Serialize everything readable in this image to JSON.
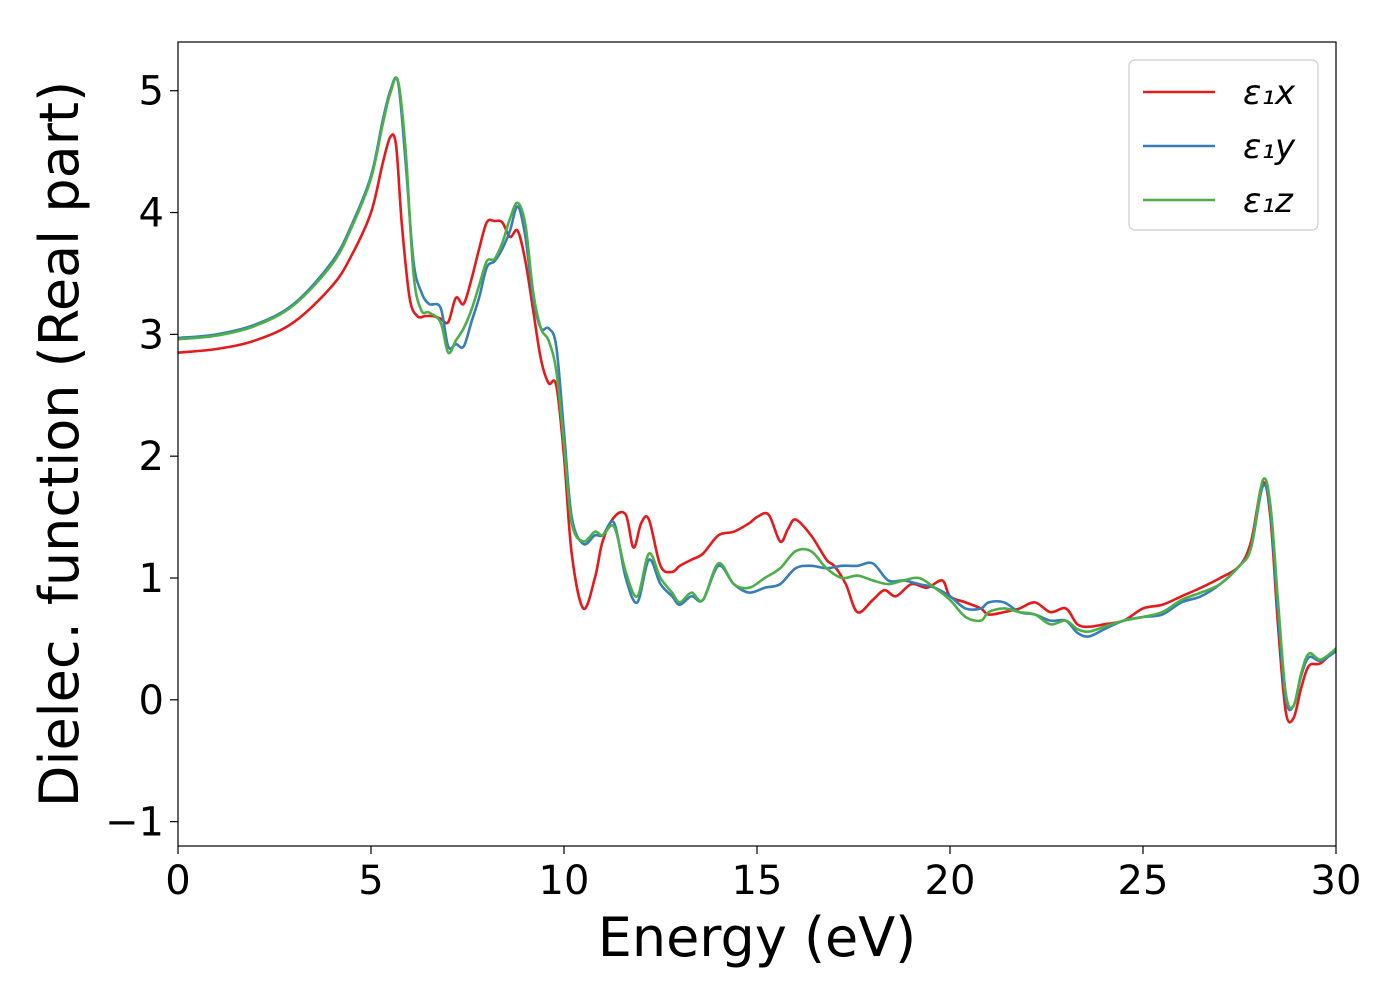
{
  "chart_data": {
    "type": "line",
    "title": "",
    "xlabel": "Energy (eV)",
    "ylabel": "Dielec. function (Real part)",
    "xlim": [
      0,
      30
    ],
    "ylim": [
      -1.2,
      5.4
    ],
    "xticks": [
      0,
      5,
      10,
      15,
      20,
      25,
      30
    ],
    "xtick_labels": [
      "0",
      "5",
      "10",
      "15",
      "20",
      "25",
      "30"
    ],
    "yticks": [
      -1,
      0,
      1,
      2,
      3,
      4,
      5
    ],
    "ytick_labels": [
      "−1",
      "0",
      "1",
      "2",
      "3",
      "4",
      "5"
    ],
    "grid": false,
    "legend_position": "top-right",
    "series": [
      {
        "name": "ε₁x",
        "color": "#e41a1c",
        "x": [
          0,
          1,
          2,
          3,
          4,
          4.5,
          5,
          5.3,
          5.5,
          5.65,
          5.8,
          6.0,
          6.2,
          6.4,
          6.6,
          6.8,
          7.0,
          7.2,
          7.4,
          7.6,
          7.8,
          8.0,
          8.2,
          8.4,
          8.6,
          8.8,
          9.0,
          9.2,
          9.4,
          9.6,
          9.8,
          10.0,
          10.2,
          10.5,
          10.8,
          11.0,
          11.3,
          11.6,
          11.8,
          12.0,
          12.2,
          12.5,
          12.8,
          13.0,
          13.3,
          13.6,
          14.0,
          14.4,
          14.8,
          15.0,
          15.3,
          15.6,
          15.8,
          16.0,
          16.4,
          16.8,
          17.0,
          17.3,
          17.6,
          18.0,
          18.3,
          18.6,
          19.0,
          19.4,
          19.8,
          20.0,
          20.4,
          20.8,
          21.0,
          21.4,
          21.8,
          22.2,
          22.6,
          23.0,
          23.3,
          23.6,
          24.0,
          24.5,
          25.0,
          25.5,
          26.0,
          26.5,
          27.0,
          27.5,
          27.8,
          28.1,
          28.3,
          28.5,
          28.7,
          28.9,
          29.1,
          29.3,
          29.6,
          30.0
        ],
        "y": [
          2.85,
          2.88,
          2.95,
          3.1,
          3.4,
          3.65,
          4.0,
          4.4,
          4.62,
          4.55,
          3.9,
          3.3,
          3.15,
          3.15,
          3.15,
          3.13,
          3.1,
          3.3,
          3.25,
          3.45,
          3.7,
          3.92,
          3.93,
          3.92,
          3.8,
          3.85,
          3.6,
          3.2,
          2.8,
          2.6,
          2.58,
          2.0,
          1.2,
          0.75,
          1.0,
          1.3,
          1.5,
          1.52,
          1.25,
          1.45,
          1.48,
          1.1,
          1.05,
          1.1,
          1.15,
          1.2,
          1.35,
          1.38,
          1.45,
          1.5,
          1.52,
          1.3,
          1.4,
          1.48,
          1.35,
          1.15,
          1.1,
          0.95,
          0.72,
          0.82,
          0.9,
          0.85,
          0.95,
          0.92,
          0.98,
          0.85,
          0.8,
          0.75,
          0.7,
          0.72,
          0.75,
          0.8,
          0.72,
          0.75,
          0.62,
          0.6,
          0.62,
          0.65,
          0.75,
          0.78,
          0.85,
          0.92,
          1.0,
          1.1,
          1.3,
          1.78,
          1.5,
          0.6,
          -0.1,
          -0.15,
          0.1,
          0.28,
          0.3,
          0.42
        ]
      },
      {
        "name": "ε₁y",
        "color": "#377eb8",
        "x": [
          0,
          1,
          2,
          3,
          4,
          4.5,
          5,
          5.3,
          5.5,
          5.7,
          5.9,
          6.1,
          6.3,
          6.5,
          6.8,
          7.0,
          7.2,
          7.4,
          7.6,
          7.8,
          8.0,
          8.2,
          8.4,
          8.6,
          8.8,
          9.0,
          9.2,
          9.4,
          9.6,
          9.8,
          10.0,
          10.2,
          10.5,
          10.8,
          11.0,
          11.3,
          11.6,
          11.9,
          12.2,
          12.5,
          12.8,
          13.0,
          13.3,
          13.6,
          14.0,
          14.4,
          14.8,
          15.2,
          15.6,
          16.0,
          16.4,
          16.8,
          17.2,
          17.6,
          18.0,
          18.4,
          18.8,
          19.2,
          19.6,
          20.0,
          20.4,
          20.8,
          21.0,
          21.4,
          21.8,
          22.2,
          22.6,
          23.0,
          23.3,
          23.6,
          24.0,
          24.5,
          25.0,
          25.5,
          26.0,
          26.5,
          27.0,
          27.5,
          27.8,
          28.1,
          28.3,
          28.5,
          28.7,
          28.9,
          29.1,
          29.3,
          29.6,
          30.0
        ],
        "y": [
          2.97,
          3.0,
          3.08,
          3.25,
          3.6,
          3.9,
          4.3,
          4.75,
          5.0,
          5.07,
          4.4,
          3.6,
          3.35,
          3.25,
          3.22,
          2.9,
          2.92,
          2.9,
          3.1,
          3.3,
          3.55,
          3.6,
          3.7,
          3.85,
          4.05,
          3.8,
          3.3,
          3.05,
          3.05,
          2.9,
          2.2,
          1.5,
          1.28,
          1.35,
          1.35,
          1.45,
          1.0,
          0.8,
          1.15,
          0.95,
          0.85,
          0.78,
          0.85,
          0.82,
          1.1,
          0.95,
          0.88,
          0.92,
          0.95,
          1.08,
          1.1,
          1.08,
          1.1,
          1.1,
          1.12,
          0.98,
          0.98,
          0.95,
          0.92,
          0.85,
          0.75,
          0.75,
          0.8,
          0.8,
          0.72,
          0.7,
          0.65,
          0.65,
          0.55,
          0.52,
          0.58,
          0.65,
          0.68,
          0.7,
          0.8,
          0.85,
          0.95,
          1.1,
          1.25,
          1.75,
          1.55,
          0.7,
          0.0,
          -0.05,
          0.2,
          0.35,
          0.32,
          0.4
        ]
      },
      {
        "name": "ε₁z",
        "color": "#4daf4a",
        "x": [
          0,
          1,
          2,
          3,
          4,
          4.5,
          5,
          5.3,
          5.5,
          5.7,
          5.9,
          6.1,
          6.3,
          6.5,
          6.8,
          7.0,
          7.2,
          7.4,
          7.6,
          7.8,
          8.0,
          8.2,
          8.4,
          8.6,
          8.8,
          9.0,
          9.2,
          9.4,
          9.6,
          9.8,
          10.0,
          10.2,
          10.5,
          10.8,
          11.0,
          11.3,
          11.6,
          11.9,
          12.2,
          12.5,
          12.8,
          13.0,
          13.3,
          13.6,
          14.0,
          14.4,
          14.8,
          15.2,
          15.6,
          16.0,
          16.4,
          16.8,
          17.2,
          17.6,
          18.0,
          18.4,
          18.8,
          19.2,
          19.6,
          20.0,
          20.4,
          20.8,
          21.0,
          21.4,
          21.8,
          22.2,
          22.6,
          23.0,
          23.3,
          23.6,
          24.0,
          24.5,
          25.0,
          25.5,
          26.0,
          26.5,
          27.0,
          27.5,
          27.8,
          28.1,
          28.3,
          28.5,
          28.7,
          28.9,
          29.1,
          29.3,
          29.6,
          30.0
        ],
        "y": [
          2.96,
          2.99,
          3.07,
          3.24,
          3.58,
          3.88,
          4.28,
          4.72,
          4.98,
          5.08,
          4.5,
          3.5,
          3.2,
          3.18,
          3.1,
          2.85,
          2.95,
          3.05,
          3.2,
          3.4,
          3.6,
          3.62,
          3.75,
          3.95,
          4.08,
          3.9,
          3.35,
          3.05,
          2.95,
          2.7,
          2.1,
          1.45,
          1.3,
          1.38,
          1.35,
          1.42,
          1.05,
          0.85,
          1.2,
          1.0,
          0.88,
          0.8,
          0.88,
          0.82,
          1.12,
          0.95,
          0.92,
          1.0,
          1.08,
          1.22,
          1.22,
          1.08,
          1.0,
          1.02,
          0.98,
          0.95,
          0.98,
          1.0,
          0.92,
          0.82,
          0.68,
          0.65,
          0.72,
          0.75,
          0.72,
          0.7,
          0.62,
          0.65,
          0.58,
          0.56,
          0.6,
          0.65,
          0.68,
          0.72,
          0.82,
          0.88,
          0.95,
          1.1,
          1.25,
          1.8,
          1.6,
          0.8,
          0.05,
          -0.05,
          0.22,
          0.38,
          0.33,
          0.42
        ]
      }
    ]
  }
}
